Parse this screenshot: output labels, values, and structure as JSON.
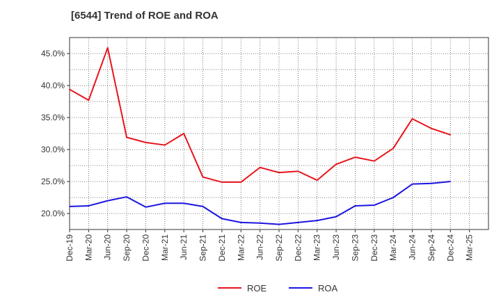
{
  "chart_data": {
    "type": "line",
    "title": "[6544]  Trend of ROE and ROA",
    "xlabel": "",
    "ylabel": "",
    "categories": [
      "Dec-19",
      "Mar-20",
      "Jun-20",
      "Sep-20",
      "Dec-20",
      "Mar-21",
      "Jun-21",
      "Sep-21",
      "Dec-21",
      "Mar-22",
      "Jun-22",
      "Sep-22",
      "Dec-22",
      "Mar-23",
      "Jun-23",
      "Sep-23",
      "Dec-23",
      "Mar-24",
      "Jun-24",
      "Sep-24",
      "Dec-24",
      "Mar-25"
    ],
    "ylim": [
      17.5,
      47.5
    ],
    "yticks": [
      20.0,
      25.0,
      30.0,
      35.0,
      40.0,
      45.0
    ],
    "ytick_labels": [
      "20.0%",
      "25.0%",
      "30.0%",
      "35.0%",
      "40.0%",
      "45.0%"
    ],
    "grid": true,
    "legend_position": "bottom-center",
    "series": [
      {
        "name": "ROE",
        "color": "#e8141b",
        "values": [
          39.4,
          37.7,
          45.9,
          31.9,
          31.1,
          30.7,
          32.5,
          25.7,
          24.9,
          24.9,
          27.2,
          26.4,
          26.6,
          25.2,
          27.7,
          28.8,
          28.2,
          30.2,
          34.8,
          33.3,
          32.3,
          null
        ]
      },
      {
        "name": "ROA",
        "color": "#1b14e0",
        "values": [
          21.1,
          21.2,
          22.0,
          22.6,
          21.0,
          21.6,
          21.6,
          21.1,
          19.2,
          18.6,
          18.5,
          18.3,
          18.6,
          18.9,
          19.5,
          21.2,
          21.3,
          22.5,
          24.6,
          24.7,
          25.0,
          null
        ]
      }
    ]
  }
}
